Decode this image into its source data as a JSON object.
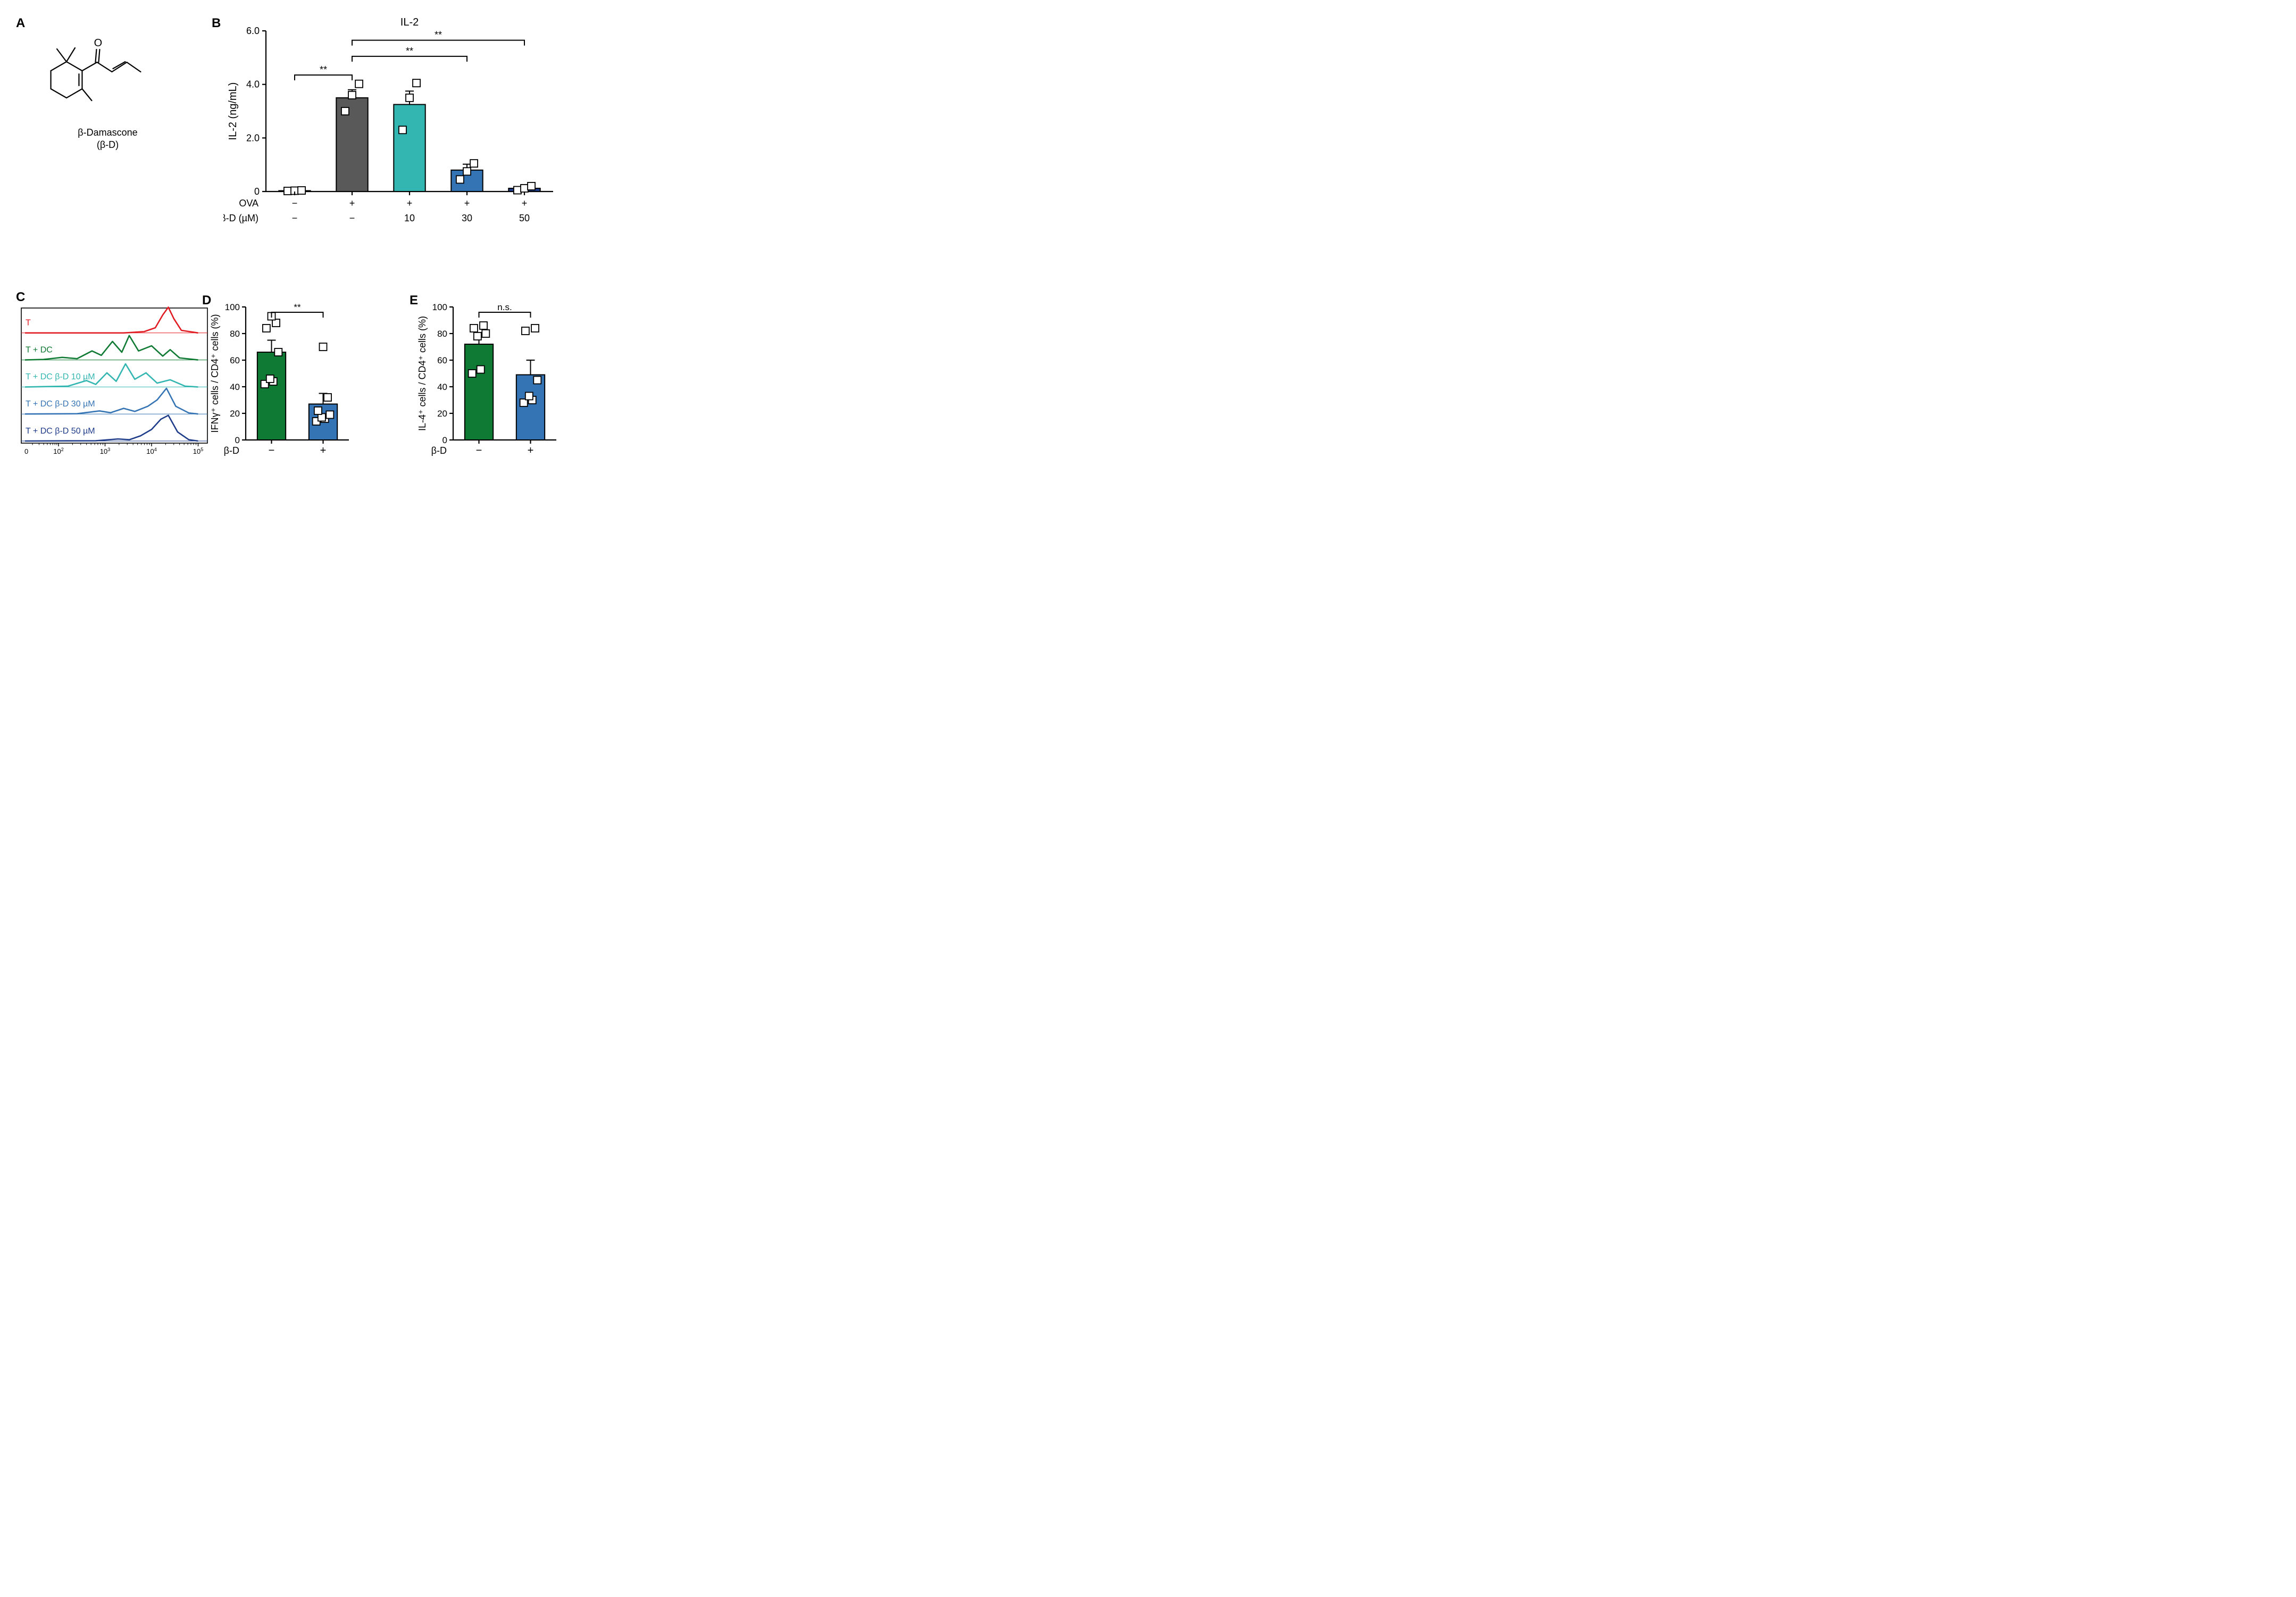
{
  "panelA": {
    "letter": "A",
    "caption_line1": "β-Damascone",
    "caption_line2": "(β-D)",
    "stroke_color": "#000000",
    "stroke_width": 2.2,
    "text_color": "#000000"
  },
  "panelB": {
    "letter": "B",
    "title": "IL-2",
    "ylabel": "IL-2 (ng/mL)",
    "ylim": [
      0,
      6
    ],
    "yticks": [
      0,
      2.0,
      4.0,
      6.0
    ],
    "tick_labels": [
      "0",
      "2.0",
      "4.0",
      "6.0"
    ],
    "axis_color": "#000000",
    "axis_width": 2.2,
    "grid": false,
    "bars": [
      {
        "label_ova": "−",
        "label_bd": "−",
        "value": 0.03,
        "color": "#ffffff",
        "points": [
          0.02,
          0.03,
          0.04
        ]
      },
      {
        "label_ova": "+",
        "label_bd": "−",
        "value": 3.5,
        "color": "#595959",
        "points": [
          3.0,
          3.6,
          4.02
        ]
      },
      {
        "label_ova": "+",
        "label_bd": "10",
        "value": 3.25,
        "color": "#33b6b1",
        "points": [
          2.3,
          3.5,
          4.05
        ]
      },
      {
        "label_ova": "+",
        "label_bd": "30",
        "value": 0.8,
        "color": "#3574b4",
        "points": [
          0.45,
          0.75,
          1.05
        ]
      },
      {
        "label_ova": "+",
        "label_bd": "50",
        "value": 0.12,
        "color": "#1f3c8a",
        "points": [
          0.05,
          0.12,
          0.2
        ]
      }
    ],
    "row_labels": [
      "OVA",
      "β-D (µM)"
    ],
    "row_label_fontsize": 18,
    "sig": [
      {
        "from": 0,
        "to": 1,
        "text": "**",
        "y": 4.35
      },
      {
        "from": 1,
        "to": 3,
        "text": "**",
        "y": 5.05
      },
      {
        "from": 1,
        "to": 4,
        "text": "**",
        "y": 5.65
      }
    ],
    "marker_size": 14,
    "marker_stroke": "#000000",
    "marker_fill": "#ffffff",
    "error_cap": 8,
    "errors": [
      0,
      0.3,
      0.5,
      0.22,
      0.08
    ]
  },
  "panelC": {
    "letter": "C",
    "frame_color": "#000000",
    "frame_width": 1.6,
    "xticks": [
      "10^2",
      "10^3",
      "10^4",
      "10^5"
    ],
    "xtick_positions": [
      0.2,
      0.45,
      0.7,
      0.95
    ],
    "traces": [
      {
        "label": "T",
        "color": "#e11b22"
      },
      {
        "label": "T + DC",
        "color": "#0f7a33"
      },
      {
        "label": "T + DC β-D 10 µM",
        "color": "#33b6b1"
      },
      {
        "label": "T + DC β-D 30 µM",
        "color": "#3574b4"
      },
      {
        "label": "T + DC β-D 50 µM",
        "color": "#1f3c8a"
      }
    ],
    "label_fontsize": 16,
    "line_width": 2.6
  },
  "panelD": {
    "letter": "D",
    "ylabel": "IFNγ⁺ cells / CD4⁺ cells (%)",
    "ylim": [
      0,
      100
    ],
    "yticks": [
      0,
      20,
      40,
      60,
      80,
      100
    ],
    "axis_color": "#000000",
    "axis_width": 2.2,
    "xrow_label": "β-D",
    "bars": [
      {
        "label": "−",
        "value": 66,
        "color": "#0f7a33",
        "points": [
          42,
          44,
          46,
          66,
          84,
          88,
          93
        ],
        "err": 9
      },
      {
        "label": "+",
        "value": 27,
        "color": "#3574b4",
        "points": [
          14,
          16,
          17,
          19,
          22,
          32,
          70
        ],
        "err": 8
      }
    ],
    "sig": {
      "text": "**"
    },
    "marker_size": 14
  },
  "panelE": {
    "letter": "E",
    "ylabel": "IL-4⁺ cells / CD4⁺ cells (%)",
    "ylim": [
      0,
      100
    ],
    "yticks": [
      0,
      20,
      40,
      60,
      80,
      100
    ],
    "axis_color": "#000000",
    "axis_width": 2.2,
    "xrow_label": "β-D",
    "bars": [
      {
        "label": "−",
        "value": 72,
        "color": "#0f7a33",
        "points": [
          50,
          53,
          78,
          80,
          84,
          86
        ],
        "err": 7
      },
      {
        "label": "+",
        "value": 49,
        "color": "#3574b4",
        "points": [
          28,
          30,
          33,
          45,
          82,
          84
        ],
        "err": 11
      }
    ],
    "sig": {
      "text": "n.s."
    },
    "marker_size": 14
  }
}
